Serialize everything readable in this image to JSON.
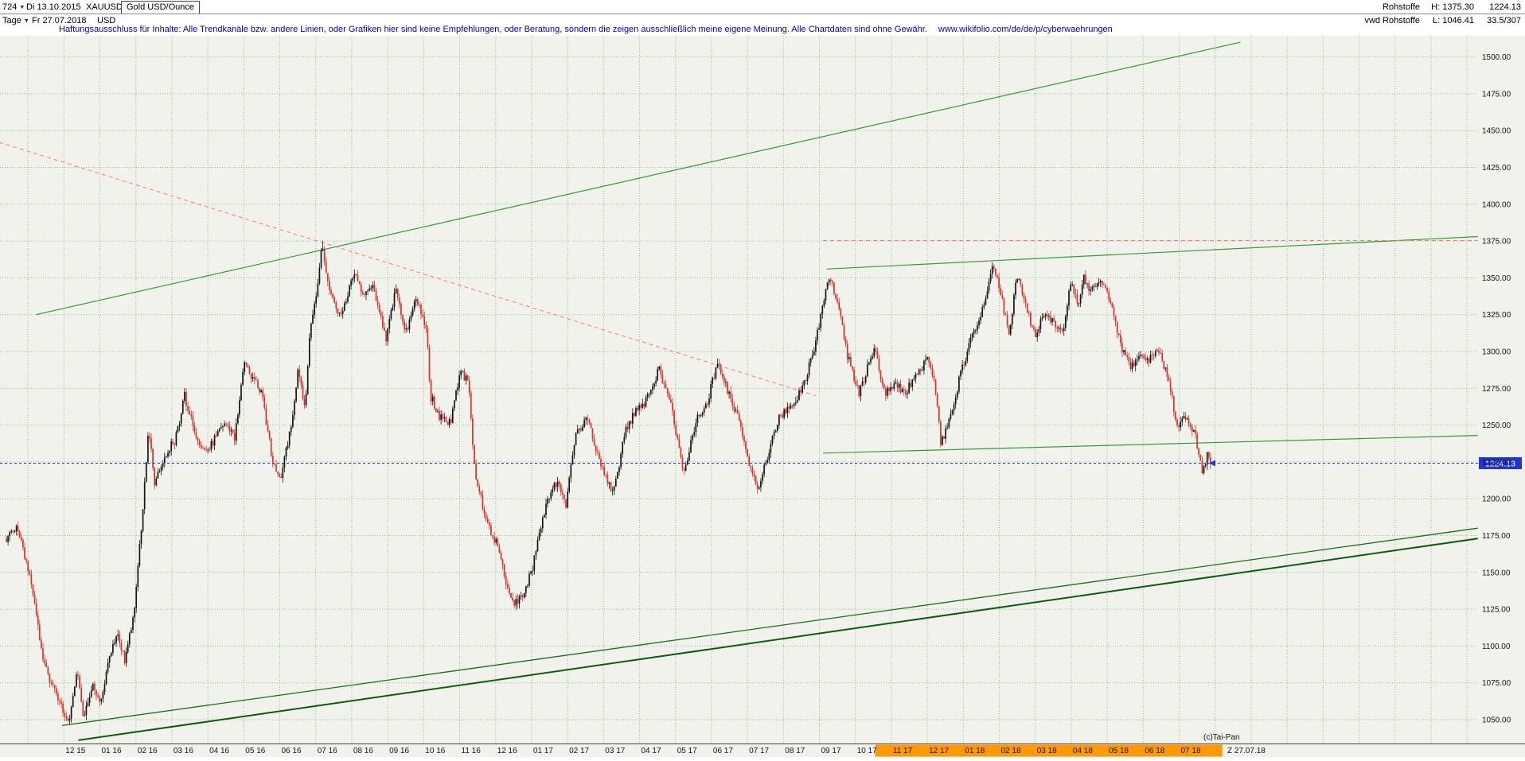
{
  "header": {
    "bars_count": "724",
    "dropdown_arrow": "▼",
    "start_date": "Di 13.10.2015",
    "symbol": "XAUUSD",
    "instrument": "Gold USD/Ounce",
    "timeframe": "Tage",
    "end_date": "Fr 27.07.2018",
    "currency": "USD",
    "category": "Rohstoffe",
    "high_label": "H: 1375.30",
    "last_price_top": "1224.13",
    "feed": "vwd Rohstoffe",
    "low_label": "L: 1046.41",
    "bar_info": "33.5/307",
    "disclaimer": "Haftungsausschluss für Inhalte: Alle Trendkanäle bzw. andere Linien, oder Grafiken hier sind keine Empfehlungen, oder Beratung, sondern die zeigen ausschließlich meine eigene Meinung. Alle Chartdaten sind ohne Gewähr.",
    "disclaimer_url": "www.wikifolio.com/de/de/p/cyberwaehrungen"
  },
  "chart_data": {
    "type": "candlestick",
    "title": "Gold USD/Ounce",
    "symbol": "XAUUSD",
    "timeframe": "Tage",
    "bars": 724,
    "months_span": 33.47,
    "start_date": "13.10.2015",
    "end_date": "27.07.2018",
    "period_high": 1375.3,
    "period_low": 1046.41,
    "last_price": 1224.13,
    "ylim": [
      1033,
      1515
    ],
    "y_ticks": [
      "1500.00",
      "1475.00",
      "1450.00",
      "1425.00",
      "1400.00",
      "1375.00",
      "1350.00",
      "1325.00",
      "1300.00",
      "1275.00",
      "1250.00",
      "1225.00",
      "1200.00",
      "1175.00",
      "1150.00",
      "1125.00",
      "1100.00",
      "1075.00",
      "1050.00"
    ],
    "x_labels": [
      "12 15",
      "01 16",
      "02 16",
      "03 16",
      "04 16",
      "05 16",
      "06 16",
      "07 16",
      "08 16",
      "09 16",
      "10 16",
      "11 16",
      "12 16",
      "01 17",
      "02 17",
      "03 17",
      "04 17",
      "05 17",
      "06 17",
      "07 17",
      "08 17",
      "09 17",
      "10 17",
      "11 17",
      "12 17",
      "01 18",
      "02 18",
      "03 18",
      "04 18",
      "05 18",
      "06 18",
      "07 18"
    ],
    "x_label_highlight_from_index": 23,
    "highlight_color": "#ff9900",
    "highlight_x_months": [
      24.15,
      33.8
    ],
    "price_keypoints_months": [
      [
        0.0,
        1172
      ],
      [
        0.3,
        1183
      ],
      [
        0.7,
        1141
      ],
      [
        1.05,
        1086
      ],
      [
        1.4,
        1068
      ],
      [
        1.62,
        1053
      ],
      [
        1.75,
        1047
      ],
      [
        1.95,
        1083
      ],
      [
        2.15,
        1052
      ],
      [
        2.4,
        1074
      ],
      [
        2.65,
        1062
      ],
      [
        2.9,
        1097
      ],
      [
        3.1,
        1107
      ],
      [
        3.3,
        1090
      ],
      [
        3.55,
        1122
      ],
      [
        3.8,
        1196
      ],
      [
        3.95,
        1250
      ],
      [
        4.12,
        1208
      ],
      [
        4.4,
        1230
      ],
      [
        4.7,
        1240
      ],
      [
        4.95,
        1270
      ],
      [
        5.25,
        1244
      ],
      [
        5.55,
        1232
      ],
      [
        5.85,
        1242
      ],
      [
        6.1,
        1252
      ],
      [
        6.35,
        1242
      ],
      [
        6.6,
        1292
      ],
      [
        6.85,
        1283
      ],
      [
        7.1,
        1272
      ],
      [
        7.4,
        1226
      ],
      [
        7.62,
        1211
      ],
      [
        7.9,
        1248
      ],
      [
        8.12,
        1288
      ],
      [
        8.3,
        1262
      ],
      [
        8.45,
        1318
      ],
      [
        8.62,
        1340
      ],
      [
        8.77,
        1372
      ],
      [
        9.0,
        1338
      ],
      [
        9.3,
        1324
      ],
      [
        9.65,
        1352
      ],
      [
        9.95,
        1340
      ],
      [
        10.2,
        1346
      ],
      [
        10.55,
        1308
      ],
      [
        10.83,
        1344
      ],
      [
        11.1,
        1312
      ],
      [
        11.35,
        1336
      ],
      [
        11.6,
        1322
      ],
      [
        11.7,
        1312
      ],
      [
        11.78,
        1270
      ],
      [
        12.05,
        1256
      ],
      [
        12.35,
        1252
      ],
      [
        12.62,
        1288
      ],
      [
        12.85,
        1278
      ],
      [
        13.0,
        1222
      ],
      [
        13.35,
        1184
      ],
      [
        13.6,
        1171
      ],
      [
        14.05,
        1128
      ],
      [
        14.3,
        1132
      ],
      [
        14.6,
        1150
      ],
      [
        15.0,
        1197
      ],
      [
        15.3,
        1212
      ],
      [
        15.55,
        1196
      ],
      [
        15.8,
        1241
      ],
      [
        16.15,
        1255
      ],
      [
        16.45,
        1228
      ],
      [
        16.87,
        1202
      ],
      [
        17.2,
        1246
      ],
      [
        17.45,
        1258
      ],
      [
        17.75,
        1264
      ],
      [
        18.13,
        1288
      ],
      [
        18.45,
        1266
      ],
      [
        18.85,
        1216
      ],
      [
        19.15,
        1252
      ],
      [
        19.45,
        1262
      ],
      [
        19.77,
        1294
      ],
      [
        20.05,
        1274
      ],
      [
        20.35,
        1254
      ],
      [
        20.65,
        1224
      ],
      [
        20.9,
        1208
      ],
      [
        21.2,
        1232
      ],
      [
        21.5,
        1256
      ],
      [
        21.8,
        1262
      ],
      [
        22.1,
        1274
      ],
      [
        22.4,
        1296
      ],
      [
        22.7,
        1330
      ],
      [
        22.85,
        1352
      ],
      [
        23.1,
        1334
      ],
      [
        23.35,
        1300
      ],
      [
        23.7,
        1272
      ],
      [
        23.95,
        1290
      ],
      [
        24.15,
        1302
      ],
      [
        24.4,
        1272
      ],
      [
        24.7,
        1278
      ],
      [
        25.0,
        1272
      ],
      [
        25.3,
        1286
      ],
      [
        25.6,
        1294
      ],
      [
        25.8,
        1280
      ],
      [
        25.97,
        1238
      ],
      [
        26.2,
        1252
      ],
      [
        26.5,
        1282
      ],
      [
        26.8,
        1308
      ],
      [
        27.05,
        1320
      ],
      [
        27.25,
        1342
      ],
      [
        27.4,
        1360
      ],
      [
        27.6,
        1344
      ],
      [
        27.87,
        1312
      ],
      [
        28.1,
        1352
      ],
      [
        28.35,
        1328
      ],
      [
        28.6,
        1312
      ],
      [
        28.85,
        1324
      ],
      [
        29.1,
        1320
      ],
      [
        29.35,
        1312
      ],
      [
        29.6,
        1348
      ],
      [
        29.8,
        1332
      ],
      [
        29.93,
        1352
      ],
      [
        30.15,
        1340
      ],
      [
        30.4,
        1350
      ],
      [
        30.65,
        1336
      ],
      [
        30.95,
        1306
      ],
      [
        31.26,
        1288
      ],
      [
        31.5,
        1300
      ],
      [
        31.75,
        1294
      ],
      [
        32.05,
        1300
      ],
      [
        32.3,
        1280
      ],
      [
        32.55,
        1250
      ],
      [
        32.8,
        1256
      ],
      [
        33.05,
        1242
      ],
      [
        33.25,
        1217
      ],
      [
        33.37,
        1230
      ],
      [
        33.47,
        1224.13
      ]
    ],
    "trendlines": [
      {
        "name": "channel-top",
        "m1": 0.82,
        "p1": 1325,
        "m2": 34.3,
        "p2": 1510,
        "color": "#2f9e2f",
        "w": 1.2,
        "dash": ""
      },
      {
        "name": "fan-support-upper",
        "m1": 1.55,
        "p1": 1046,
        "m2": 40.9,
        "p2": 1180,
        "color": "#157015",
        "w": 1.3,
        "dash": ""
      },
      {
        "name": "fan-support-lower",
        "m1": 2.0,
        "p1": 1036,
        "m2": 40.9,
        "p2": 1173,
        "color": "#0b5d0b",
        "w": 2,
        "dash": ""
      },
      {
        "name": "resistance-top-right",
        "m1": 22.8,
        "p1": 1356,
        "m2": 40.9,
        "p2": 1378,
        "color": "#2f9e2f",
        "w": 1.2,
        "dash": ""
      },
      {
        "name": "support-right",
        "m1": 22.7,
        "p1": 1231,
        "m2": 40.9,
        "p2": 1243,
        "color": "#2f9e2f",
        "w": 1.2,
        "dash": ""
      },
      {
        "name": "downtrend-line",
        "m1": -0.2,
        "p1": 1442,
        "m2": 22.5,
        "p2": 1270,
        "color": "#ff7373",
        "w": 1,
        "dash": "5 4"
      },
      {
        "name": "period-high-line",
        "m1": 22.7,
        "p1": 1375.3,
        "m2": 40.9,
        "p2": 1375.3,
        "color": "#ff7373",
        "w": 1,
        "dash": "5 4"
      }
    ],
    "grid": {
      "y_step": 25,
      "x_step_months": 1
    },
    "colors": {
      "up": "#141414",
      "down": "#d23228",
      "grid": "#8cbf8c",
      "last_price_line": "#2d2dcc",
      "badge_bg": "#2135d6",
      "badge_text": "#ffffff",
      "background": "#f2f2ed",
      "axis_text": "#141414"
    }
  },
  "footer": {
    "copyright": "(c)Tai-Pan",
    "z_label": "Z 27.07.18"
  }
}
